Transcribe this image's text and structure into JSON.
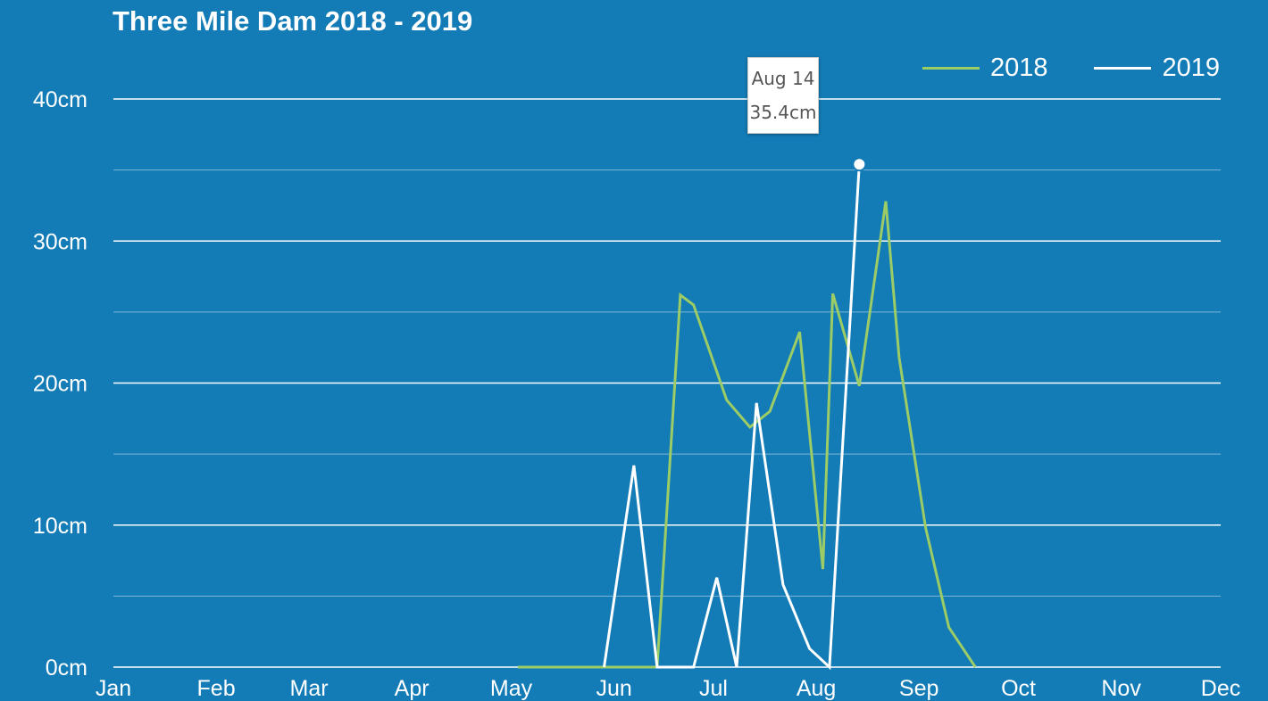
{
  "chart_data": {
    "type": "line",
    "title": "Three Mile Dam 2018 - 2019",
    "xlabel": "",
    "ylabel": "",
    "x_axis_months": [
      "Jan",
      "Feb",
      "Mar",
      "Apr",
      "May",
      "Jun",
      "Jul",
      "Aug",
      "Sep",
      "Oct",
      "Nov",
      "Dec"
    ],
    "y_ticks": [
      "0cm",
      "10cm",
      "20cm",
      "30cm",
      "40cm"
    ],
    "ylim": [
      0,
      40
    ],
    "grid": true,
    "legend_position": "top-right",
    "series": [
      {
        "name": "2018",
        "color": "#9ccc65",
        "points": [
          [
            "May 3",
            0
          ],
          [
            "May 29",
            0
          ],
          [
            "Jun 14",
            0
          ],
          [
            "Jun 21",
            26.2
          ],
          [
            "Jun 25",
            25.5
          ],
          [
            "Jul 5",
            18.8
          ],
          [
            "Jul 12",
            16.9
          ],
          [
            "Jul 18",
            18.0
          ],
          [
            "Jul 27",
            23.6
          ],
          [
            "Aug 3",
            6.9
          ],
          [
            "Aug 6",
            26.3
          ],
          [
            "Aug 14",
            19.8
          ],
          [
            "Aug 22",
            32.8
          ],
          [
            "Aug 26",
            21.8
          ],
          [
            "Sep 3",
            9.8
          ],
          [
            "Sep 10",
            2.8
          ],
          [
            "Sep 18",
            0
          ]
        ]
      },
      {
        "name": "2019",
        "color": "#ffffff",
        "points": [
          [
            "May 29",
            0
          ],
          [
            "Jun 7",
            14.2
          ],
          [
            "Jun 14",
            0
          ],
          [
            "Jun 25",
            0
          ],
          [
            "Jul 2",
            6.3
          ],
          [
            "Jul 8",
            0
          ],
          [
            "Jul 14",
            18.6
          ],
          [
            "Jul 22",
            5.8
          ],
          [
            "Jul 30",
            1.3
          ],
          [
            "Aug 5",
            0
          ],
          [
            "Aug 14",
            35.4
          ]
        ]
      }
    ],
    "tooltip": {
      "date": "Aug 14",
      "value": "35.4cm"
    }
  }
}
